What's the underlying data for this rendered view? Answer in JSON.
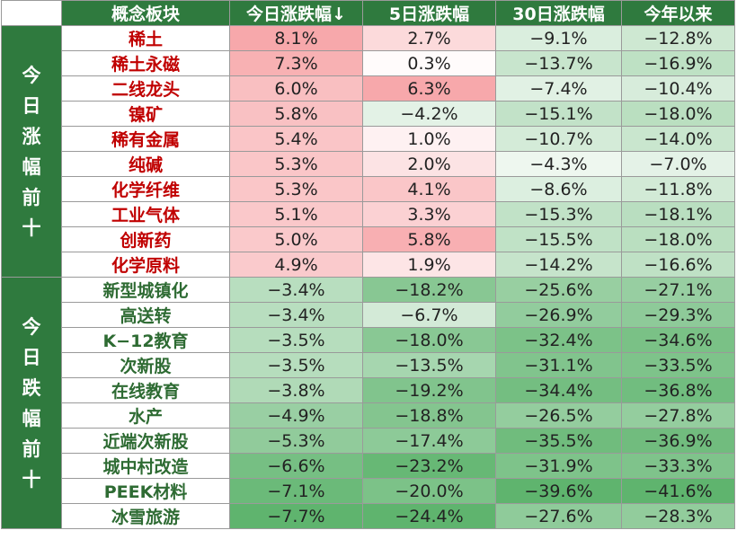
{
  "chart_data": {
    "type": "table",
    "columns": [
      "概念板块",
      "今日涨跌幅↓",
      "5日涨跌幅",
      "30日涨跌幅",
      "今年以来"
    ],
    "groups": [
      {
        "label": "今日涨幅前十",
        "rows": [
          {
            "name": "稀土",
            "values": [
              "8.1%",
              "2.7%",
              "−9.1%",
              "−12.8%"
            ]
          },
          {
            "name": "稀土永磁",
            "values": [
              "7.3%",
              "0.3%",
              "−13.7%",
              "−16.9%"
            ]
          },
          {
            "name": "二线龙头",
            "values": [
              "6.0%",
              "6.3%",
              "−7.4%",
              "−10.4%"
            ]
          },
          {
            "name": "镍矿",
            "values": [
              "5.8%",
              "−4.2%",
              "−15.1%",
              "−18.0%"
            ]
          },
          {
            "name": "稀有金属",
            "values": [
              "5.4%",
              "1.0%",
              "−10.7%",
              "−14.0%"
            ]
          },
          {
            "name": "纯碱",
            "values": [
              "5.3%",
              "2.0%",
              "−4.3%",
              "−7.0%"
            ]
          },
          {
            "name": "化学纤维",
            "values": [
              "5.3%",
              "4.1%",
              "−8.6%",
              "−11.8%"
            ]
          },
          {
            "name": "工业气体",
            "values": [
              "5.1%",
              "3.3%",
              "−15.3%",
              "−18.1%"
            ]
          },
          {
            "name": "创新药",
            "values": [
              "5.0%",
              "5.8%",
              "−15.5%",
              "−18.0%"
            ]
          },
          {
            "name": "化学原料",
            "values": [
              "4.9%",
              "1.9%",
              "−14.2%",
              "−16.6%"
            ]
          }
        ]
      },
      {
        "label": "今日跌幅前十",
        "rows": [
          {
            "name": "新型城镇化",
            "values": [
              "−3.4%",
              "−18.2%",
              "−25.6%",
              "−27.1%"
            ]
          },
          {
            "name": "高送转",
            "values": [
              "−3.4%",
              "−6.7%",
              "−26.9%",
              "−29.3%"
            ]
          },
          {
            "name": "K−12教育",
            "values": [
              "−3.5%",
              "−18.0%",
              "−32.4%",
              "−34.6%"
            ]
          },
          {
            "name": "次新股",
            "values": [
              "−3.5%",
              "−13.5%",
              "−31.1%",
              "−33.5%"
            ]
          },
          {
            "name": "在线教育",
            "values": [
              "−3.8%",
              "−19.2%",
              "−34.4%",
              "−36.8%"
            ]
          },
          {
            "name": "水产",
            "values": [
              "−4.9%",
              "−18.8%",
              "−26.5%",
              "−27.8%"
            ]
          },
          {
            "name": "近端次新股",
            "values": [
              "−5.3%",
              "−17.4%",
              "−35.5%",
              "−36.9%"
            ]
          },
          {
            "name": "城中村改造",
            "values": [
              "−6.6%",
              "−23.2%",
              "−31.9%",
              "−33.3%"
            ]
          },
          {
            "name": "PEEK材料",
            "values": [
              "−7.1%",
              "−20.0%",
              "−39.6%",
              "−41.6%"
            ]
          },
          {
            "name": "冰雪旅游",
            "values": [
              "−7.7%",
              "−24.4%",
              "−27.6%",
              "−28.3%"
            ]
          }
        ]
      }
    ]
  },
  "colors": {
    "header_bg": "#2f7a3e",
    "up_text": "#c00000",
    "down_text": "#2e6b33",
    "pos_max": "#f7a8ab",
    "neg_max": "#5fb46e"
  }
}
